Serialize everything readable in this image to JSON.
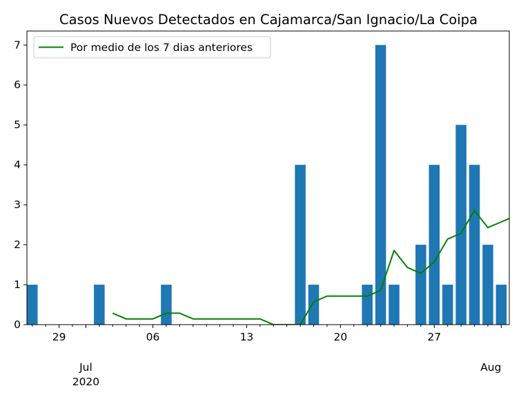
{
  "chart_data": {
    "type": "bar",
    "title": "Casos Nuevos Detectados en Cajamarca/San Ignacio/La Coipa",
    "xlabel": "",
    "ylabel": "",
    "ylim": [
      0,
      7.35
    ],
    "y_ticks": [
      0,
      1,
      2,
      3,
      4,
      5,
      6,
      7
    ],
    "x_major_ticks": [
      {
        "day": 29,
        "label": "29"
      },
      {
        "day": 36,
        "label": "06"
      },
      {
        "day": 43,
        "label": "13"
      },
      {
        "day": 50,
        "label": "20"
      },
      {
        "day": 57,
        "label": "27"
      }
    ],
    "x_month_labels": [
      {
        "day": 31,
        "label": "Jul",
        "sublabel": "2020"
      },
      {
        "day": 62,
        "label": "Aug",
        "sublabel": ""
      }
    ],
    "x_range_days": [
      26.6,
      62.6
    ],
    "x_minor_tick_days": [
      27,
      28,
      30,
      31,
      32,
      33,
      34,
      35,
      37,
      38,
      39,
      40,
      41,
      42,
      44,
      45,
      46,
      47,
      48,
      49,
      51,
      52,
      53,
      54,
      55,
      56,
      58,
      59,
      60,
      61
    ],
    "day_reference": "days counted from 31 May 2020 (day 31 = 1 Jul, day 62 = 1 Aug)",
    "bars": {
      "color": "#1f77b4",
      "days": [
        27,
        28,
        29,
        30,
        31,
        32,
        33,
        34,
        35,
        36,
        37,
        38,
        39,
        40,
        41,
        42,
        43,
        44,
        45,
        46,
        47,
        48,
        49,
        50,
        51,
        52,
        53,
        54,
        55,
        56,
        57,
        58,
        59,
        60,
        61,
        62
      ],
      "values": [
        1,
        0,
        0,
        0,
        0,
        1,
        0,
        0,
        0,
        0,
        1,
        0,
        0,
        0,
        0,
        0,
        0,
        0,
        0,
        0,
        4,
        1,
        0,
        0,
        0,
        1,
        7,
        1,
        0,
        2,
        4,
        1,
        5,
        4,
        2,
        1
      ]
    },
    "series": [
      {
        "name": "Por medio de los 7 dias anteriores",
        "color": "#008000",
        "days": [
          33,
          34,
          35,
          36,
          37,
          38,
          39,
          40,
          41,
          42,
          43,
          44,
          45,
          46,
          47,
          48,
          49,
          50,
          51,
          52,
          53,
          54,
          55,
          56,
          57,
          58,
          59,
          60,
          61,
          62,
          63
        ],
        "values": [
          0.286,
          0.143,
          0.143,
          0.143,
          0.286,
          0.286,
          0.143,
          0.143,
          0.143,
          0.143,
          0.143,
          0.143,
          0,
          0,
          0,
          0.571,
          0.714,
          0.714,
          0.714,
          0.714,
          0.857,
          1.857,
          1.429,
          1.286,
          1.571,
          2.143,
          2.286,
          2.857,
          2.429,
          2.571,
          2.714
        ]
      }
    ],
    "legend": {
      "location": "upper left",
      "label": "Por medio de los 7 dias anteriores"
    }
  }
}
